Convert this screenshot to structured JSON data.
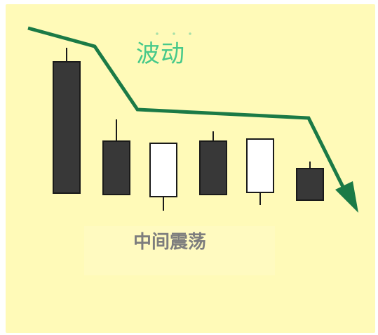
{
  "title": "波动",
  "caption": "中间震荡",
  "colors": {
    "background": "#fffab8",
    "arrow": "#1b7a46",
    "title": "#47c98a",
    "bearish_fill": "#383838",
    "bullish_fill": "#ffffff",
    "candle_outline": "#1a1a1a",
    "caption": "#7d7d7d"
  },
  "candles": [
    {
      "type": "bearish"
    },
    {
      "type": "bearish"
    },
    {
      "type": "bullish"
    },
    {
      "type": "bearish"
    },
    {
      "type": "bullish"
    },
    {
      "type": "bearish"
    }
  ],
  "arrow": {
    "direction": "down-right",
    "icon": "trend-arrow-icon"
  }
}
